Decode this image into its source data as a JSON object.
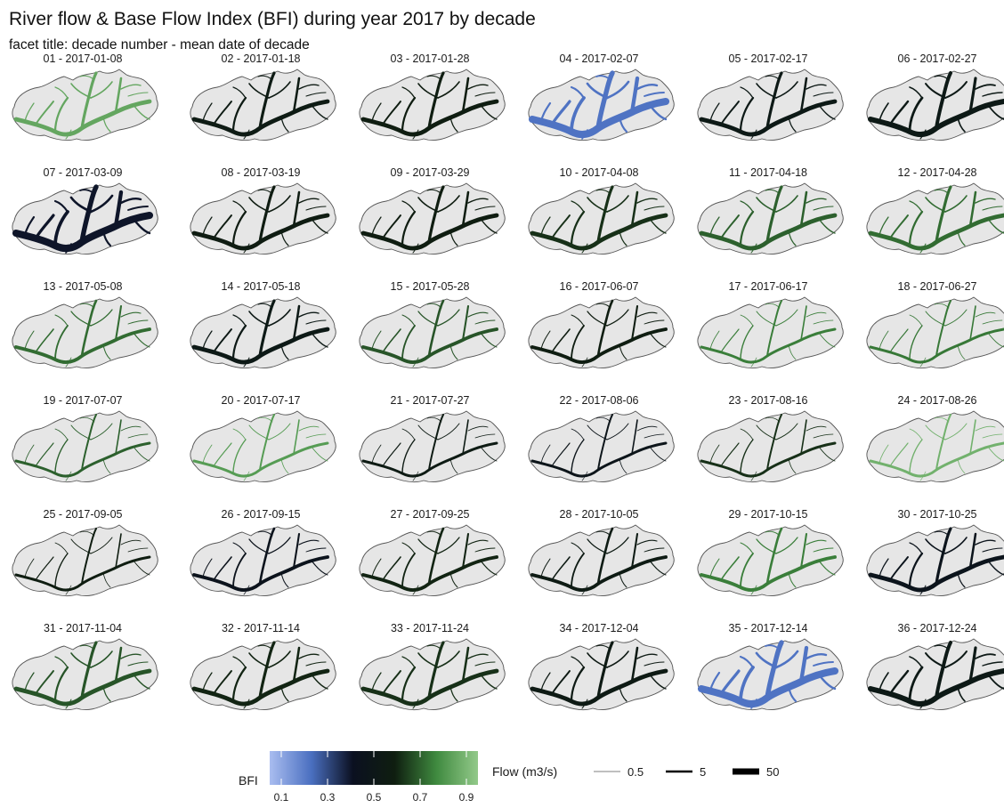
{
  "title": "River flow & Base Flow Index (BFI) during year 2017 by decade",
  "subtitle": "facet title: decade number - mean date of decade",
  "chart_data": {
    "type": "small-multiple maps",
    "facet_variable": "decade",
    "color_variable": "BFI",
    "width_variable": "Flow (m3/s)",
    "facets": [
      {
        "label": "01 - 2017-01-08",
        "bfi": 0.85,
        "flow": "medium"
      },
      {
        "label": "02 - 2017-01-18",
        "bfi": 0.55,
        "flow": "medium"
      },
      {
        "label": "03 - 2017-01-28",
        "bfi": 0.58,
        "flow": "medium"
      },
      {
        "label": "04 - 2017-02-07",
        "bfi": 0.22,
        "flow": "high"
      },
      {
        "label": "05 - 2017-02-17",
        "bfi": 0.52,
        "flow": "medium"
      },
      {
        "label": "06 - 2017-02-27",
        "bfi": 0.52,
        "flow": "medium-high"
      },
      {
        "label": "07 - 2017-03-09",
        "bfi": 0.4,
        "flow": "high"
      },
      {
        "label": "08 - 2017-03-19",
        "bfi": 0.57,
        "flow": "medium"
      },
      {
        "label": "09 - 2017-03-29",
        "bfi": 0.58,
        "flow": "medium"
      },
      {
        "label": "10 - 2017-04-08",
        "bfi": 0.62,
        "flow": "medium"
      },
      {
        "label": "11 - 2017-04-18",
        "bfi": 0.7,
        "flow": "medium"
      },
      {
        "label": "12 - 2017-04-28",
        "bfi": 0.72,
        "flow": "medium"
      },
      {
        "label": "13 - 2017-05-08",
        "bfi": 0.72,
        "flow": "medium-low"
      },
      {
        "label": "14 - 2017-05-18",
        "bfi": 0.52,
        "flow": "medium"
      },
      {
        "label": "15 - 2017-05-28",
        "bfi": 0.68,
        "flow": "medium-low"
      },
      {
        "label": "16 - 2017-06-07",
        "bfi": 0.58,
        "flow": "medium-low"
      },
      {
        "label": "17 - 2017-06-17",
        "bfi": 0.75,
        "flow": "low"
      },
      {
        "label": "18 - 2017-06-27",
        "bfi": 0.74,
        "flow": "low"
      },
      {
        "label": "19 - 2017-07-07",
        "bfi": 0.7,
        "flow": "low"
      },
      {
        "label": "20 - 2017-07-17",
        "bfi": 0.82,
        "flow": "low"
      },
      {
        "label": "21 - 2017-07-27",
        "bfi": 0.55,
        "flow": "low"
      },
      {
        "label": "22 - 2017-08-06",
        "bfi": 0.48,
        "flow": "low"
      },
      {
        "label": "23 - 2017-08-16",
        "bfi": 0.62,
        "flow": "low"
      },
      {
        "label": "24 - 2017-08-26",
        "bfi": 0.88,
        "flow": "low"
      },
      {
        "label": "25 - 2017-09-05",
        "bfi": 0.58,
        "flow": "low"
      },
      {
        "label": "26 - 2017-09-15",
        "bfi": 0.45,
        "flow": "medium-low"
      },
      {
        "label": "27 - 2017-09-25",
        "bfi": 0.6,
        "flow": "medium-low"
      },
      {
        "label": "28 - 2017-10-05",
        "bfi": 0.55,
        "flow": "medium-low"
      },
      {
        "label": "29 - 2017-10-15",
        "bfi": 0.75,
        "flow": "medium-low"
      },
      {
        "label": "30 - 2017-10-25",
        "bfi": 0.46,
        "flow": "medium"
      },
      {
        "label": "31 - 2017-11-04",
        "bfi": 0.68,
        "flow": "medium"
      },
      {
        "label": "32 - 2017-11-14",
        "bfi": 0.6,
        "flow": "medium"
      },
      {
        "label": "33 - 2017-11-24",
        "bfi": 0.62,
        "flow": "medium"
      },
      {
        "label": "34 - 2017-12-04",
        "bfi": 0.54,
        "flow": "medium"
      },
      {
        "label": "35 - 2017-12-14",
        "bfi": 0.22,
        "flow": "high"
      },
      {
        "label": "36 - 2017-12-24",
        "bfi": 0.52,
        "flow": "medium-high"
      }
    ],
    "legend": {
      "bfi": {
        "title": "BFI",
        "ticks": [
          "0.1",
          "0.3",
          "0.5",
          "0.7",
          "0.9"
        ],
        "range": [
          0.05,
          0.95
        ],
        "colors": [
          "#a9bdf0",
          "#4a6fc0",
          "#0b1020",
          "#0f1e10",
          "#3f8a3f",
          "#93c98a"
        ]
      },
      "flow": {
        "title": "Flow (m3/s)",
        "values": [
          "0.5",
          "5",
          "50"
        ]
      }
    },
    "colors": {
      "basin_fill": "#e6e6e6",
      "basin_outline": "#555555"
    }
  }
}
